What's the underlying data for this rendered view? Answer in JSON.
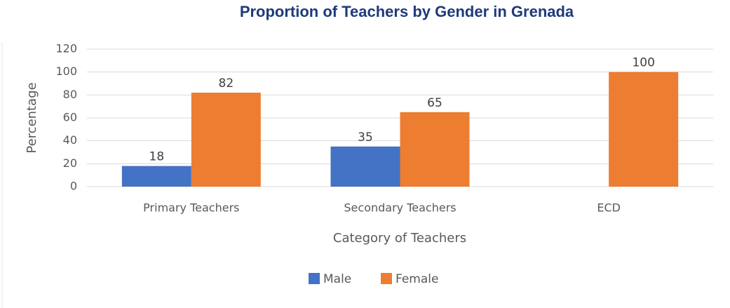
{
  "chart_data": {
    "type": "bar",
    "title": "Proportion of Teachers by Gender in Grenada",
    "x_label": "Category of Teachers",
    "y_label": "Percentage",
    "categories": [
      "Primary Teachers",
      "Secondary Teachers",
      "ECD"
    ],
    "series": [
      {
        "name": "Male",
        "color": "#4472c4",
        "values": [
          18,
          35,
          null
        ]
      },
      {
        "name": "Female",
        "color": "#ed7d31",
        "values": [
          82,
          65,
          100
        ]
      }
    ],
    "ylim": [
      0,
      120
    ],
    "yticks": [
      0,
      20,
      40,
      60,
      80,
      100,
      120
    ],
    "grid": true,
    "legend": "bottom"
  }
}
